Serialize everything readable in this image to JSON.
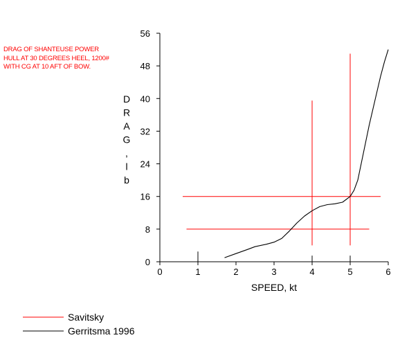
{
  "chart_data": {
    "type": "line",
    "note": "DRAG OF SHANTEUSE POWER HULL AT 30 DEGREES HEEL, 1200# WITH CG AT 10 AFT OF BOW.",
    "xlabel": "SPEED, kt",
    "ylabel": "DRAG, lb",
    "xlim": [
      0,
      6
    ],
    "ylim": [
      0,
      56
    ],
    "xticks": [
      0,
      1,
      2,
      3,
      4,
      5,
      6
    ],
    "yticks": [
      0,
      8,
      16,
      24,
      32,
      40,
      48,
      56
    ],
    "grid": false,
    "legend_position": "bottom-left",
    "series": [
      {
        "name": "Savitsky",
        "color": "#ff0000",
        "style": "crosshair lines",
        "vertical_lines": [
          {
            "x": 4,
            "y_range": [
              4,
              39.5
            ]
          },
          {
            "x": 5,
            "y_range": [
              4,
              51
            ]
          }
        ],
        "horizontal_lines": [
          {
            "y": 8,
            "x_range": [
              0.7,
              5.5
            ]
          },
          {
            "y": 16,
            "x_range": [
              0.6,
              5.8
            ]
          }
        ]
      },
      {
        "name": "Gerritsma 1996",
        "color": "#000000",
        "x": [
          1.7,
          2.0,
          2.3,
          2.5,
          2.8,
          3.0,
          3.2,
          3.4,
          3.6,
          3.8,
          4.0,
          4.2,
          4.4,
          4.6,
          4.8,
          5.0,
          5.1,
          5.2,
          5.3,
          5.4,
          5.5,
          5.6,
          5.7,
          5.8,
          5.9,
          6.0
        ],
        "y": [
          1.0,
          2.0,
          3.0,
          3.7,
          4.3,
          4.8,
          5.7,
          7.5,
          9.5,
          11.2,
          12.5,
          13.5,
          14.0,
          14.2,
          14.6,
          16.0,
          17.5,
          20.0,
          24.5,
          29.0,
          33.5,
          37.5,
          41.5,
          45.5,
          49.0,
          52.0
        ]
      }
    ],
    "extra_marks": [
      {
        "x": 1,
        "y_range": [
          0,
          2.5
        ]
      },
      {
        "x": 4,
        "y_range": [
          0,
          1.5
        ]
      },
      {
        "x": 5,
        "y_range": [
          0,
          1.5
        ]
      }
    ]
  }
}
